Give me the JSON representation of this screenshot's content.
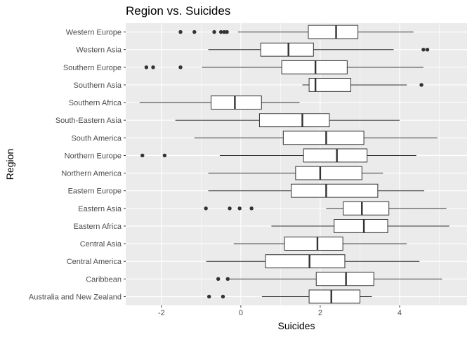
{
  "chart_data": {
    "type": "boxplot",
    "orientation": "horizontal",
    "title": "Region vs. Suicides",
    "xlabel": "Suicides",
    "ylabel": "Region",
    "xlim": [
      -2.9,
      5.7
    ],
    "x_ticks": [
      -2,
      0,
      2,
      4
    ],
    "x_tick_labels": [
      "-2",
      "0",
      "2",
      "4"
    ],
    "grid": true,
    "legend": "none",
    "colors": {
      "panel": "#ebebeb",
      "grid_major": "#ffffff",
      "box_fill": "#ffffff",
      "box_line": "#333333",
      "outlier": "#333333",
      "tick_label": "#4d4d4d"
    },
    "categories": [
      "Western Europe",
      "Western Asia",
      "Southern Europe",
      "Southern Asia",
      "Southern Africa",
      "South-Eastern Asia",
      "South America",
      "Northern Europe",
      "Northern America",
      "Eastern Europe",
      "Eastern Asia",
      "Eastern Africa",
      "Central Asia",
      "Central America",
      "Caribbean",
      "Australia and New Zealand"
    ],
    "boxes": [
      {
        "category": "Western Europe",
        "whisker_low": -0.07,
        "q1": 1.7,
        "median": 2.4,
        "q3": 2.95,
        "whisker_high": 4.35,
        "outliers": [
          -1.52,
          -1.17,
          -0.67,
          -0.5,
          -0.42,
          -0.35
        ]
      },
      {
        "category": "Western Asia",
        "whisker_low": -0.82,
        "q1": 0.5,
        "median": 1.2,
        "q3": 1.83,
        "whisker_high": 3.85,
        "outliers": [
          4.6,
          4.7
        ]
      },
      {
        "category": "Southern Europe",
        "whisker_low": -0.98,
        "q1": 1.03,
        "median": 1.88,
        "q3": 2.68,
        "whisker_high": 4.6,
        "outliers": [
          -2.38,
          -2.21,
          -1.52
        ]
      },
      {
        "category": "Southern Asia",
        "whisker_low": 1.55,
        "q1": 1.72,
        "median": 1.88,
        "q3": 2.77,
        "whisker_high": 4.18,
        "outliers": [
          4.55
        ]
      },
      {
        "category": "Southern Africa",
        "whisker_low": -2.55,
        "q1": -0.75,
        "median": -0.15,
        "q3": 0.52,
        "whisker_high": 1.48,
        "outliers": []
      },
      {
        "category": "South-Eastern Asia",
        "whisker_low": -1.65,
        "q1": 0.47,
        "median": 1.55,
        "q3": 2.23,
        "whisker_high": 4.0,
        "outliers": []
      },
      {
        "category": "South America",
        "whisker_low": -1.17,
        "q1": 1.07,
        "median": 2.15,
        "q3": 3.1,
        "whisker_high": 4.95,
        "outliers": []
      },
      {
        "category": "Northern Europe",
        "whisker_low": -0.53,
        "q1": 1.58,
        "median": 2.42,
        "q3": 3.18,
        "whisker_high": 4.42,
        "outliers": [
          -2.48,
          -1.92
        ]
      },
      {
        "category": "Northern America",
        "whisker_low": -0.82,
        "q1": 1.38,
        "median": 2.0,
        "q3": 3.05,
        "whisker_high": 3.58,
        "outliers": []
      },
      {
        "category": "Eastern Europe",
        "whisker_low": -0.82,
        "q1": 1.27,
        "median": 2.15,
        "q3": 3.45,
        "whisker_high": 4.62,
        "outliers": []
      },
      {
        "category": "Eastern Asia",
        "whisker_low": 2.15,
        "q1": 2.58,
        "median": 3.05,
        "q3": 3.73,
        "whisker_high": 5.18,
        "outliers": [
          -0.88,
          -0.28,
          -0.03,
          0.27
        ]
      },
      {
        "category": "Eastern Africa",
        "whisker_low": 0.77,
        "q1": 2.35,
        "median": 3.1,
        "q3": 3.7,
        "whisker_high": 5.25,
        "outliers": []
      },
      {
        "category": "Central Asia",
        "whisker_low": -0.18,
        "q1": 1.1,
        "median": 1.93,
        "q3": 2.57,
        "whisker_high": 4.18,
        "outliers": []
      },
      {
        "category": "Central America",
        "whisker_low": -0.87,
        "q1": 0.62,
        "median": 1.73,
        "q3": 2.62,
        "whisker_high": 4.5,
        "outliers": []
      },
      {
        "category": "Caribbean",
        "whisker_low": -0.32,
        "q1": 1.9,
        "median": 2.65,
        "q3": 3.35,
        "whisker_high": 5.07,
        "outliers": [
          -0.57,
          -0.33
        ]
      },
      {
        "category": "Australia and New Zealand",
        "whisker_low": 0.53,
        "q1": 1.72,
        "median": 2.28,
        "q3": 3.0,
        "whisker_high": 3.3,
        "outliers": [
          -0.8,
          -0.45
        ]
      }
    ]
  }
}
